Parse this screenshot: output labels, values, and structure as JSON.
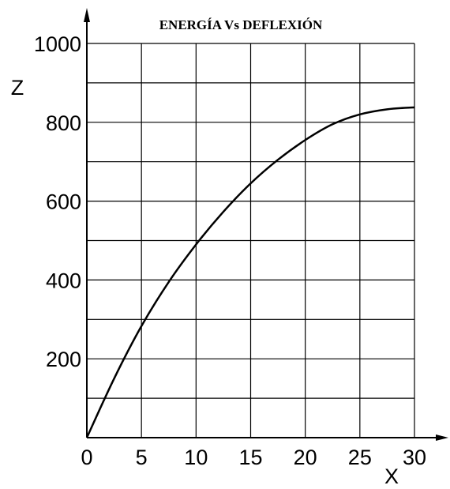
{
  "chart_data": {
    "type": "line",
    "title": "ENERGÍA Vs DEFLEXIÓN",
    "xlabel": "X",
    "ylabel": "Z",
    "xlim": [
      0,
      30
    ],
    "ylim": [
      0,
      1000
    ],
    "xticks": [
      "0",
      "5",
      "10",
      "15",
      "20",
      "25",
      "30"
    ],
    "yticks": [
      "200",
      "400",
      "600",
      "800",
      "1000"
    ],
    "grid": true,
    "series": [
      {
        "x": [
          0,
          2.5,
          5,
          7.5,
          10,
          12.5,
          15,
          17.5,
          20,
          22.5,
          25,
          27.5,
          30
        ],
        "y": [
          0,
          150,
          283,
          395,
          490,
          573,
          645,
          705,
          755,
          795,
          820,
          833,
          838
        ]
      }
    ]
  }
}
